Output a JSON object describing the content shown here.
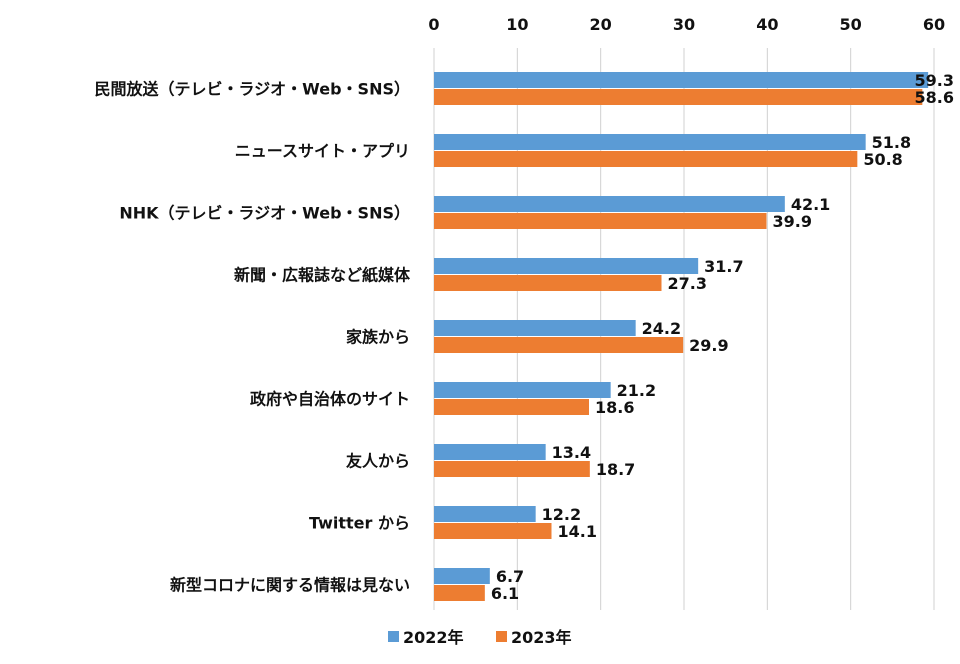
{
  "chart_data": {
    "type": "bar",
    "orientation": "horizontal",
    "title": "",
    "xlabel": "",
    "ylabel": "",
    "xlim": [
      0,
      60
    ],
    "ticks": [
      "0",
      "10",
      "20",
      "30",
      "40",
      "50",
      "60"
    ],
    "tick_values": [
      0,
      10,
      20,
      30,
      40,
      50,
      60
    ],
    "grid": true,
    "legend_position": "bottom",
    "categories": [
      "民間放送（テレビ・ラジオ・Web・SNS）",
      "ニュースサイト・アプリ",
      "NHK（テレビ・ラジオ・Web・SNS）",
      "新聞・広報誌など紙媒体",
      "家族から",
      "政府や自治体のサイト",
      "友人から",
      "Twitter から",
      "新型コロナに関する情報は見ない"
    ],
    "series": [
      {
        "name": "2022年",
        "color": "#5b9bd5",
        "values": [
          59.3,
          51.8,
          42.1,
          31.7,
          24.2,
          21.2,
          13.4,
          12.2,
          6.7
        ],
        "labels": [
          "59.3",
          "51.8",
          "42.1",
          "31.7",
          "24.2",
          "21.2",
          "13.4",
          "12.2",
          "6.7"
        ]
      },
      {
        "name": "2023年",
        "color": "#ed7d31",
        "values": [
          58.6,
          50.8,
          39.9,
          27.3,
          29.9,
          18.6,
          18.7,
          14.1,
          6.1
        ],
        "labels": [
          "58.6",
          "50.8",
          "39.9",
          "27.3",
          "29.9",
          "18.6",
          "18.7",
          "14.1",
          "6.1"
        ]
      }
    ]
  }
}
